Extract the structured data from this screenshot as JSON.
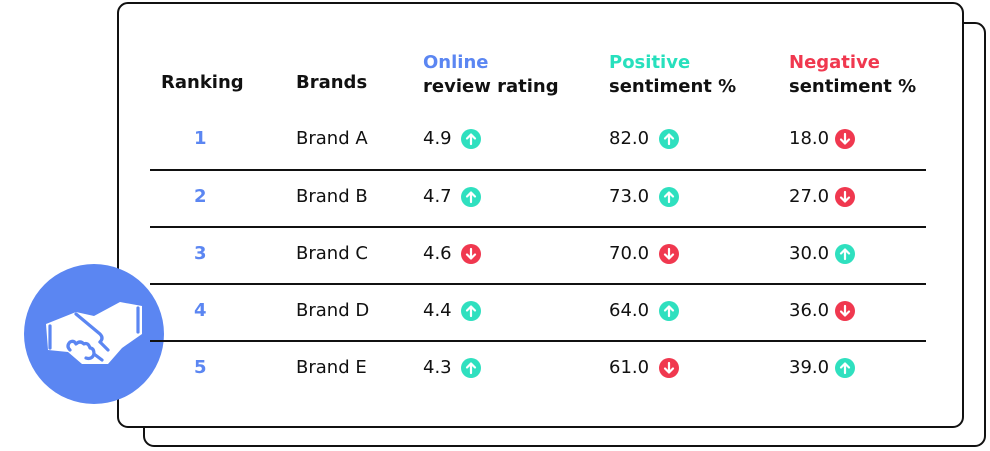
{
  "colors": {
    "accent_blue": "#5b86f2",
    "positive_teal": "#27e0bd",
    "negative_red": "#f0384f",
    "text": "#111111"
  },
  "badge": {
    "icon": "handshake-icon"
  },
  "headers": {
    "ranking": "Ranking",
    "brands": "Brands",
    "rating_l1": "Online",
    "rating_l2": "review rating",
    "positive_l1": "Positive",
    "positive_l2": "sentiment %",
    "negative_l1": "Negative",
    "negative_l2": "sentiment %"
  },
  "rows": [
    {
      "rank": "1",
      "brand": "Brand A",
      "rating": "4.9",
      "rating_trend": "up",
      "positive": "82.0",
      "positive_trend": "up",
      "negative": "18.0",
      "negative_trend": "down"
    },
    {
      "rank": "2",
      "brand": "Brand B",
      "rating": "4.7",
      "rating_trend": "up",
      "positive": "73.0",
      "positive_trend": "up",
      "negative": "27.0",
      "negative_trend": "down"
    },
    {
      "rank": "3",
      "brand": "Brand C",
      "rating": "4.6",
      "rating_trend": "down",
      "positive": "70.0",
      "positive_trend": "down",
      "negative": "30.0",
      "negative_trend": "up"
    },
    {
      "rank": "4",
      "brand": "Brand D",
      "rating": "4.4",
      "rating_trend": "up",
      "positive": "64.0",
      "positive_trend": "up",
      "negative": "36.0",
      "negative_trend": "down"
    },
    {
      "rank": "5",
      "brand": "Brand E",
      "rating": "4.3",
      "rating_trend": "up",
      "positive": "61.0",
      "positive_trend": "down",
      "negative": "39.0",
      "negative_trend": "up"
    }
  ]
}
